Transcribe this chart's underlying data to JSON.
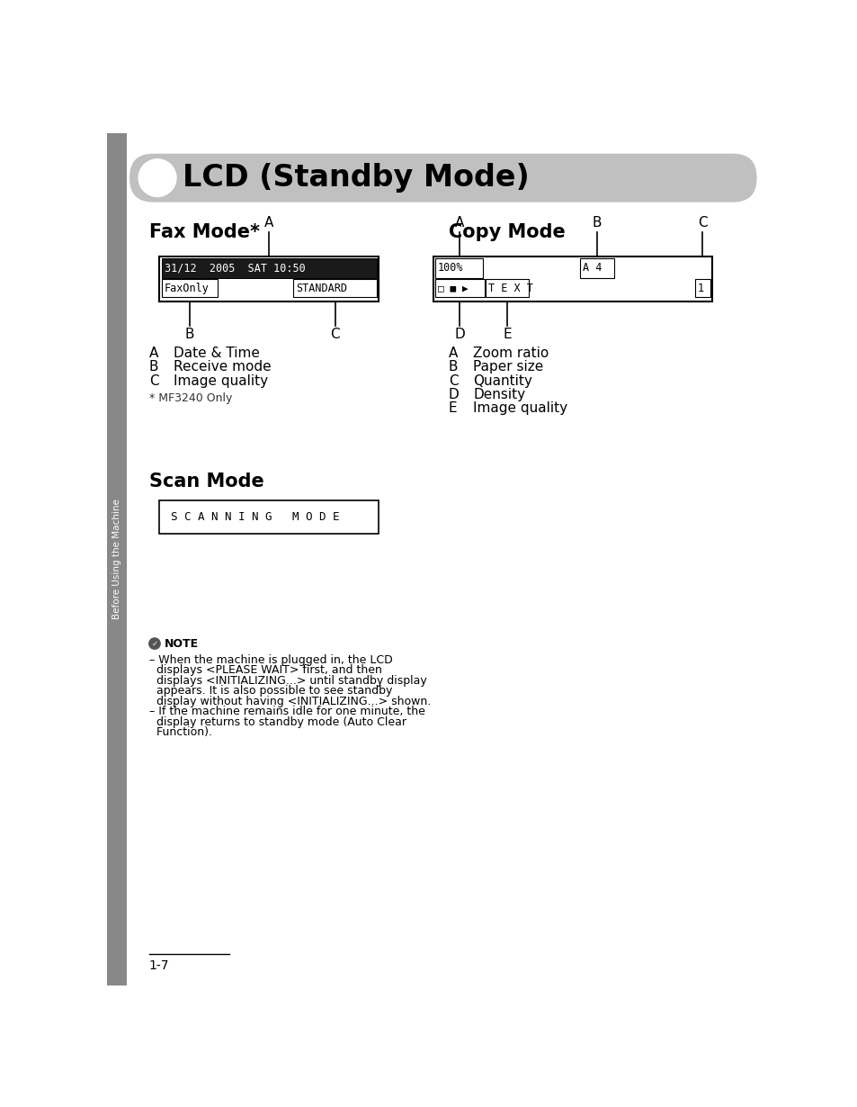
{
  "page_bg": "#ffffff",
  "header_bg": "#c0c0c0",
  "header_text": "LCD (Standby Mode)",
  "header_circle_color": "#ffffff",
  "sidebar_color": "#888888",
  "sidebar_text": "Before Using the Machine",
  "fax_title": "Fax Mode*",
  "fax_line1": "31/12  2005  SAT 10:50",
  "fax_line2_left": "FaxOnly",
  "fax_line2_right": "STANDARD",
  "fax_desc_A": "Date & Time",
  "fax_desc_B": "Receive mode",
  "fax_desc_C": "Image quality",
  "fax_note": "* MF3240 Only",
  "copy_title": "Copy Mode",
  "copy_desc_A": "Zoom ratio",
  "copy_desc_B": "Paper size",
  "copy_desc_C": "Quantity",
  "copy_desc_D": "Density",
  "copy_desc_E": "Image quality",
  "scan_title": "Scan Mode",
  "scan_text": "S C A N N I N G   M O D E",
  "note_title": "NOTE",
  "note_lines": [
    "– When the machine is plugged in, the LCD",
    "  displays <PLEASE WAIT> first, and then",
    "  displays <INITIALIZING...> until standby display",
    "  appears. It is also possible to see standby",
    "  display without having <INITIALIZING...> shown.",
    "– If the machine remains idle for one minute, the",
    "  display returns to standby mode (Auto Clear",
    "  Function)."
  ],
  "page_number": "1-7"
}
